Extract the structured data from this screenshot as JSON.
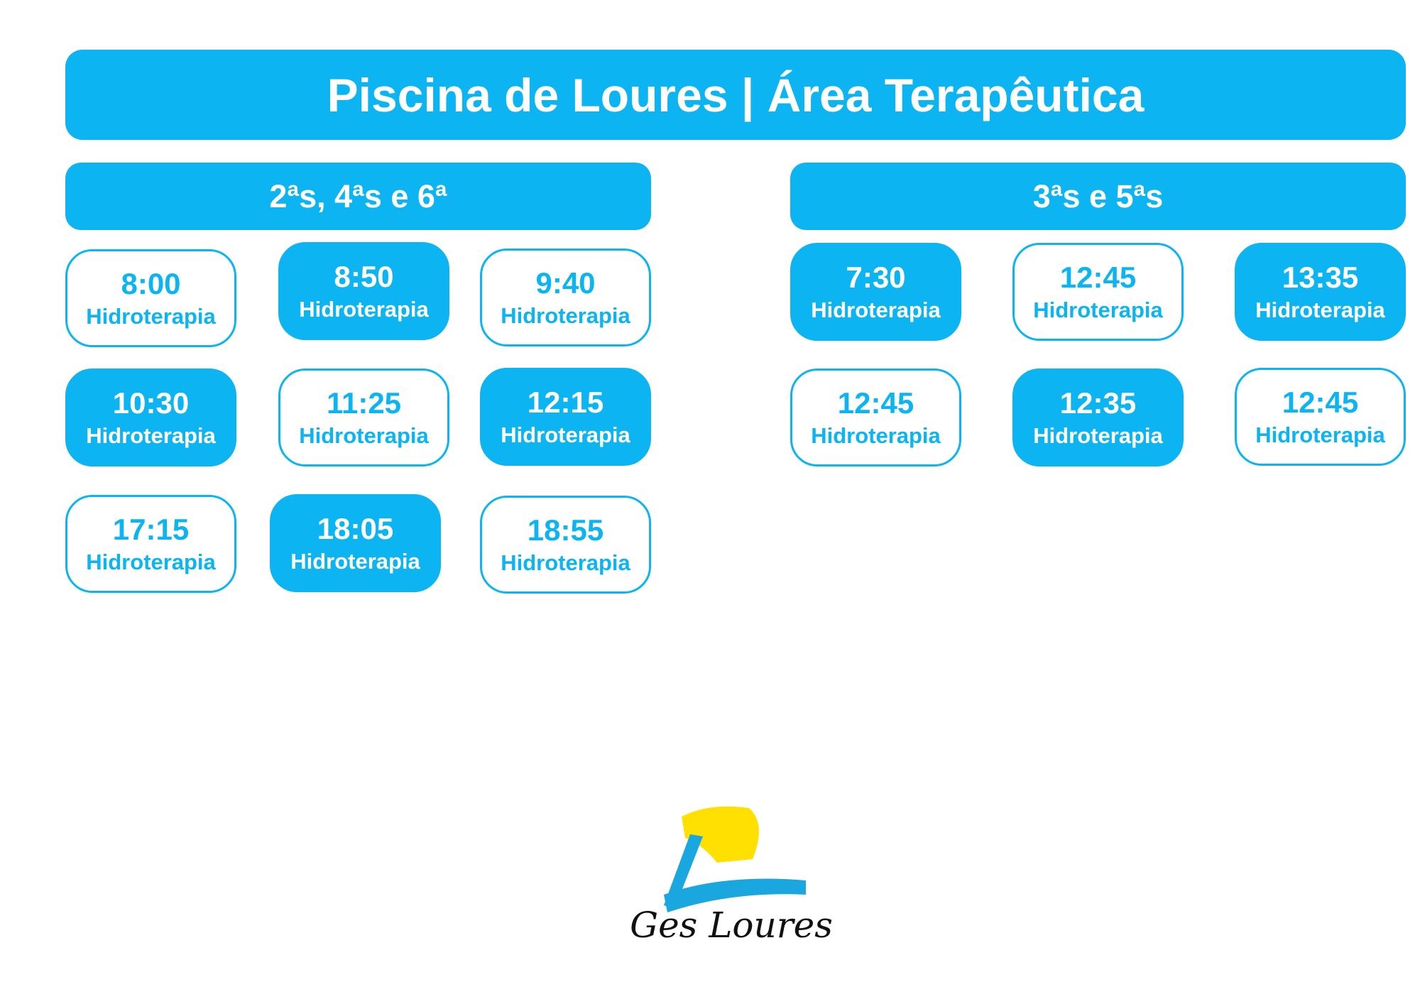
{
  "title": "Piscina de Loures | Área Terapêutica",
  "schedules": [
    {
      "days": "2ªs, 4ªs e 6ª",
      "sessions": [
        {
          "time": "8:00",
          "activity": "Hidroterapia",
          "filled": false
        },
        {
          "time": "8:50",
          "activity": "Hidroterapia",
          "filled": true
        },
        {
          "time": "9:40",
          "activity": "Hidroterapia",
          "filled": false
        },
        {
          "time": "10:30",
          "activity": "Hidroterapia",
          "filled": true
        },
        {
          "time": "11:25",
          "activity": "Hidroterapia",
          "filled": false
        },
        {
          "time": "12:15",
          "activity": "Hidroterapia",
          "filled": true
        },
        {
          "time": "17:15",
          "activity": "Hidroterapia",
          "filled": false
        },
        {
          "time": "18:05",
          "activity": "Hidroterapia",
          "filled": true
        },
        {
          "time": "18:55",
          "activity": "Hidroterapia",
          "filled": false
        }
      ]
    },
    {
      "days": "3ªs e 5ªs",
      "sessions": [
        {
          "time": "7:30",
          "activity": "Hidroterapia",
          "filled": true
        },
        {
          "time": "12:45",
          "activity": "Hidroterapia",
          "filled": false
        },
        {
          "time": "13:35",
          "activity": "Hidroterapia",
          "filled": true
        },
        {
          "time": "12:45",
          "activity": "Hidroterapia",
          "filled": false
        },
        {
          "time": "12:35",
          "activity": "Hidroterapia",
          "filled": true
        },
        {
          "time": "12:45",
          "activity": "Hidroterapia",
          "filled": false
        }
      ]
    }
  ],
  "logo": "Ges Loures"
}
